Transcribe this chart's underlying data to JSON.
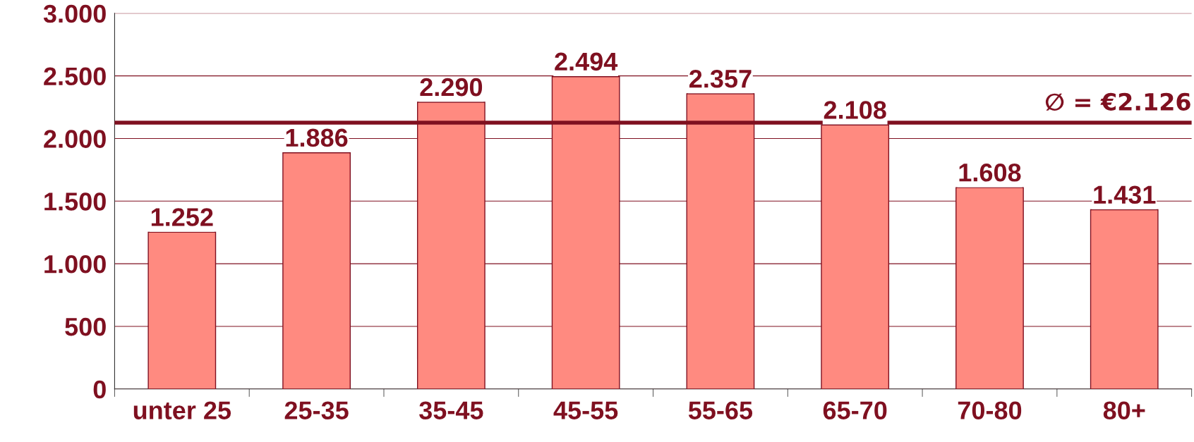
{
  "chart_data": {
    "type": "bar",
    "categories": [
      "unter 25",
      "25-35",
      "35-45",
      "45-55",
      "55-65",
      "65-70",
      "70-80",
      "80+"
    ],
    "values": [
      1252,
      1886,
      2290,
      2494,
      2357,
      2108,
      1608,
      1431
    ],
    "value_labels": [
      "1.252",
      "1.886",
      "2.290",
      "2.494",
      "2.357",
      "2.108",
      "1.608",
      "1.431"
    ],
    "color": "#ff8a80",
    "ylim": [
      0,
      3000
    ],
    "yticks": [
      0,
      500,
      {
        "value": 1000,
        "label": "1.000"
      },
      {
        "value": 1500,
        "label": "1.500"
      },
      {
        "value": 2000,
        "label": "2.000"
      },
      {
        "value": 2500,
        "label": "2.500"
      },
      {
        "value": 3000,
        "label": "3.000"
      }
    ],
    "grid": "y",
    "legend": false,
    "ref_lines": [
      {
        "axis": "y",
        "value": 2126,
        "label": "∅ = €2.126",
        "color": "#7f1020"
      }
    ]
  }
}
